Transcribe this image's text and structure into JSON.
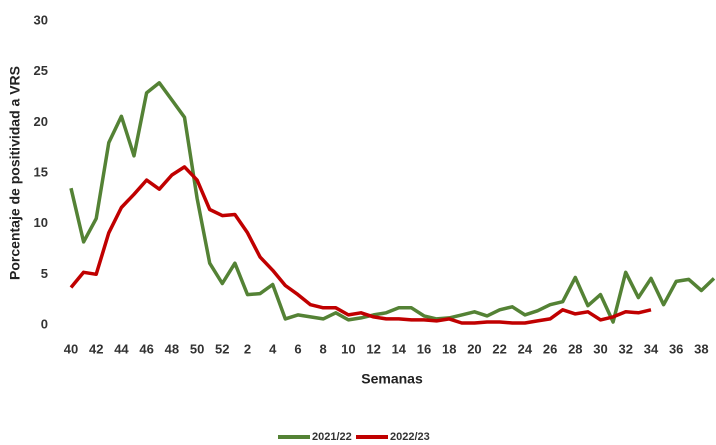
{
  "chart_data": {
    "type": "line",
    "x_label": "Semanas",
    "y_label": "Porcentaje de positividad a VRS",
    "categories": [
      40,
      null,
      42,
      null,
      44,
      null,
      46,
      null,
      48,
      null,
      50,
      null,
      52,
      null,
      2,
      null,
      4,
      null,
      6,
      null,
      8,
      null,
      10,
      null,
      12,
      null,
      14,
      null,
      16,
      null,
      18,
      null,
      20,
      null,
      22,
      null,
      24,
      null,
      26,
      null,
      28,
      null,
      30,
      null,
      32,
      null,
      34,
      null,
      36,
      null,
      38,
      null
    ],
    "series": [
      {
        "name": "2021/22",
        "color": "#548235",
        "values": [
          13.5,
          8.2,
          10.5,
          18,
          20.6,
          16.7,
          22.9,
          23.9,
          22.2,
          20.5,
          12.5,
          6.1,
          4.1,
          6.1,
          3.0,
          3.1,
          4.0,
          0.6,
          1.0,
          0.8,
          0.6,
          1.2,
          0.5,
          0.7,
          1.0,
          1.2,
          1.7,
          1.7,
          0.9,
          0.6,
          0.7,
          1.0,
          1.3,
          0.9,
          1.5,
          1.8,
          1.0,
          1.4,
          2.0,
          2.3,
          4.7,
          1.9,
          3.0,
          0.3,
          5.2,
          2.7,
          4.6,
          2.0,
          4.3,
          4.5,
          3.4,
          4.6
        ]
      },
      {
        "name": "2022/23",
        "color": "#c00000",
        "values": [
          3.7,
          5.2,
          5.0,
          9.1,
          11.6,
          12.9,
          14.3,
          13.4,
          14.8,
          15.6,
          14.3,
          11.4,
          10.8,
          10.9,
          9.1,
          6.7,
          5.4,
          3.9,
          3.0,
          2.0,
          1.7,
          1.7,
          1.0,
          1.2,
          0.8,
          0.6,
          0.6,
          0.5,
          0.5,
          0.4,
          0.6,
          0.2,
          0.2,
          0.3,
          0.3,
          0.2,
          0.2,
          0.4,
          0.6,
          1.5,
          1.1,
          1.3,
          0.5,
          0.8,
          1.3,
          1.2,
          1.5,
          null,
          null,
          null,
          null,
          null
        ]
      }
    ],
    "ylim": [
      0,
      30
    ],
    "yticks": [
      0,
      5,
      10,
      15,
      20,
      25,
      30
    ],
    "grid": false,
    "legend": "bottom"
  }
}
